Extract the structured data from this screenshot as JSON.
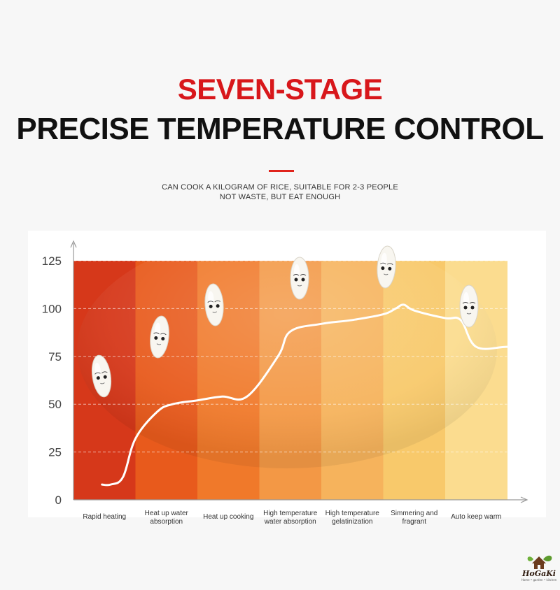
{
  "header": {
    "title_line1": "SEVEN-STAGE",
    "title_line2": "PRECISE TEMPERATURE CONTROL",
    "subtitle_line1": "CAN COOK A KILOGRAM OF RICE, SUITABLE FOR 2-3 PEOPLE",
    "subtitle_line2": "NOT WASTE, BUT EAT ENOUGH"
  },
  "colors": {
    "title_red": "#d8171b",
    "accent": "#e0241c",
    "stage_colors": [
      "#d6381a",
      "#e85a1c",
      "#f0792a",
      "#f39845",
      "#f6b35c",
      "#f8c96b",
      "#fbdc8f"
    ],
    "curve": "#ffffff"
  },
  "chart_data": {
    "type": "line",
    "categories": [
      "Rapid heating",
      "Heat up water\nabsorption",
      "Heat up cooking",
      "High temperature\nwater absorption",
      "High temperature\ngelatinization",
      "Simmering and\nfragrant",
      "Auto keep warm"
    ],
    "y_ticks": [
      0,
      25,
      50,
      75,
      100,
      125
    ],
    "ylim": [
      0,
      125
    ],
    "grid": "dashed",
    "x": [
      -0.04,
      0.1,
      0.3,
      0.5,
      0.85,
      1.1,
      1.5,
      1.9,
      2.3,
      2.8,
      3.0,
      3.5,
      4.0,
      4.5,
      4.7,
      4.83,
      5.0,
      5.5,
      5.75,
      6.0,
      6.5,
      6.98
    ],
    "y": [
      8,
      8,
      12,
      32,
      46,
      50,
      52,
      54,
      54,
      75,
      88,
      92,
      94,
      97,
      100,
      102,
      99,
      95,
      94,
      80,
      80,
      80
    ],
    "icons": [
      "rice-grain-mascot-stage1",
      "rice-grain-mascot-stage2",
      "rice-grain-mascot-stage3",
      "rice-grain-mascot-stage4",
      "rice-grain-mascot-stage5",
      "rice-grain-mascot-stage6"
    ]
  },
  "brand": {
    "logo_text": "HoGaKi",
    "logo_tagline": "Home • garden • kitchen"
  }
}
